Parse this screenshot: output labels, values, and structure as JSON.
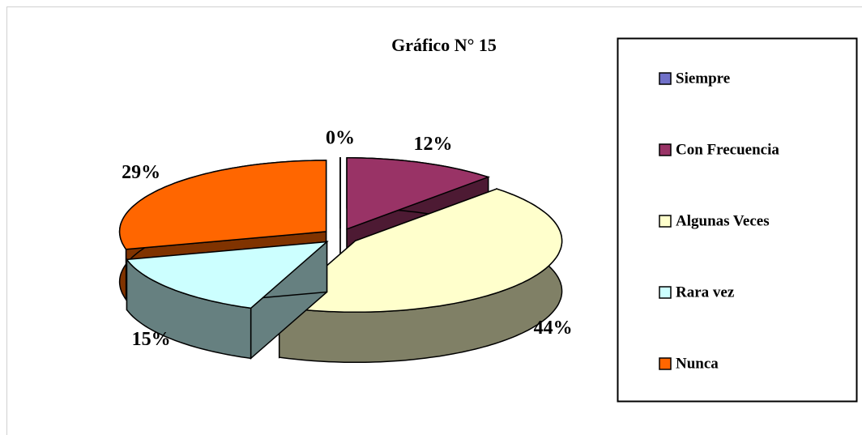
{
  "chart_data": {
    "type": "pie",
    "title": "Gráfico N° 15",
    "categories": [
      "Siempre",
      "Con Frecuencia",
      "Algunas Veces",
      "Rara vez",
      "Nunca"
    ],
    "values": [
      0,
      12,
      44,
      15,
      29
    ],
    "value_labels": [
      "0%",
      "12%",
      "44%",
      "15%",
      "29%"
    ],
    "colors": [
      "#7070c8",
      "#993366",
      "#ffffcc",
      "#ccffff",
      "#ff6600"
    ],
    "legend": "right"
  }
}
